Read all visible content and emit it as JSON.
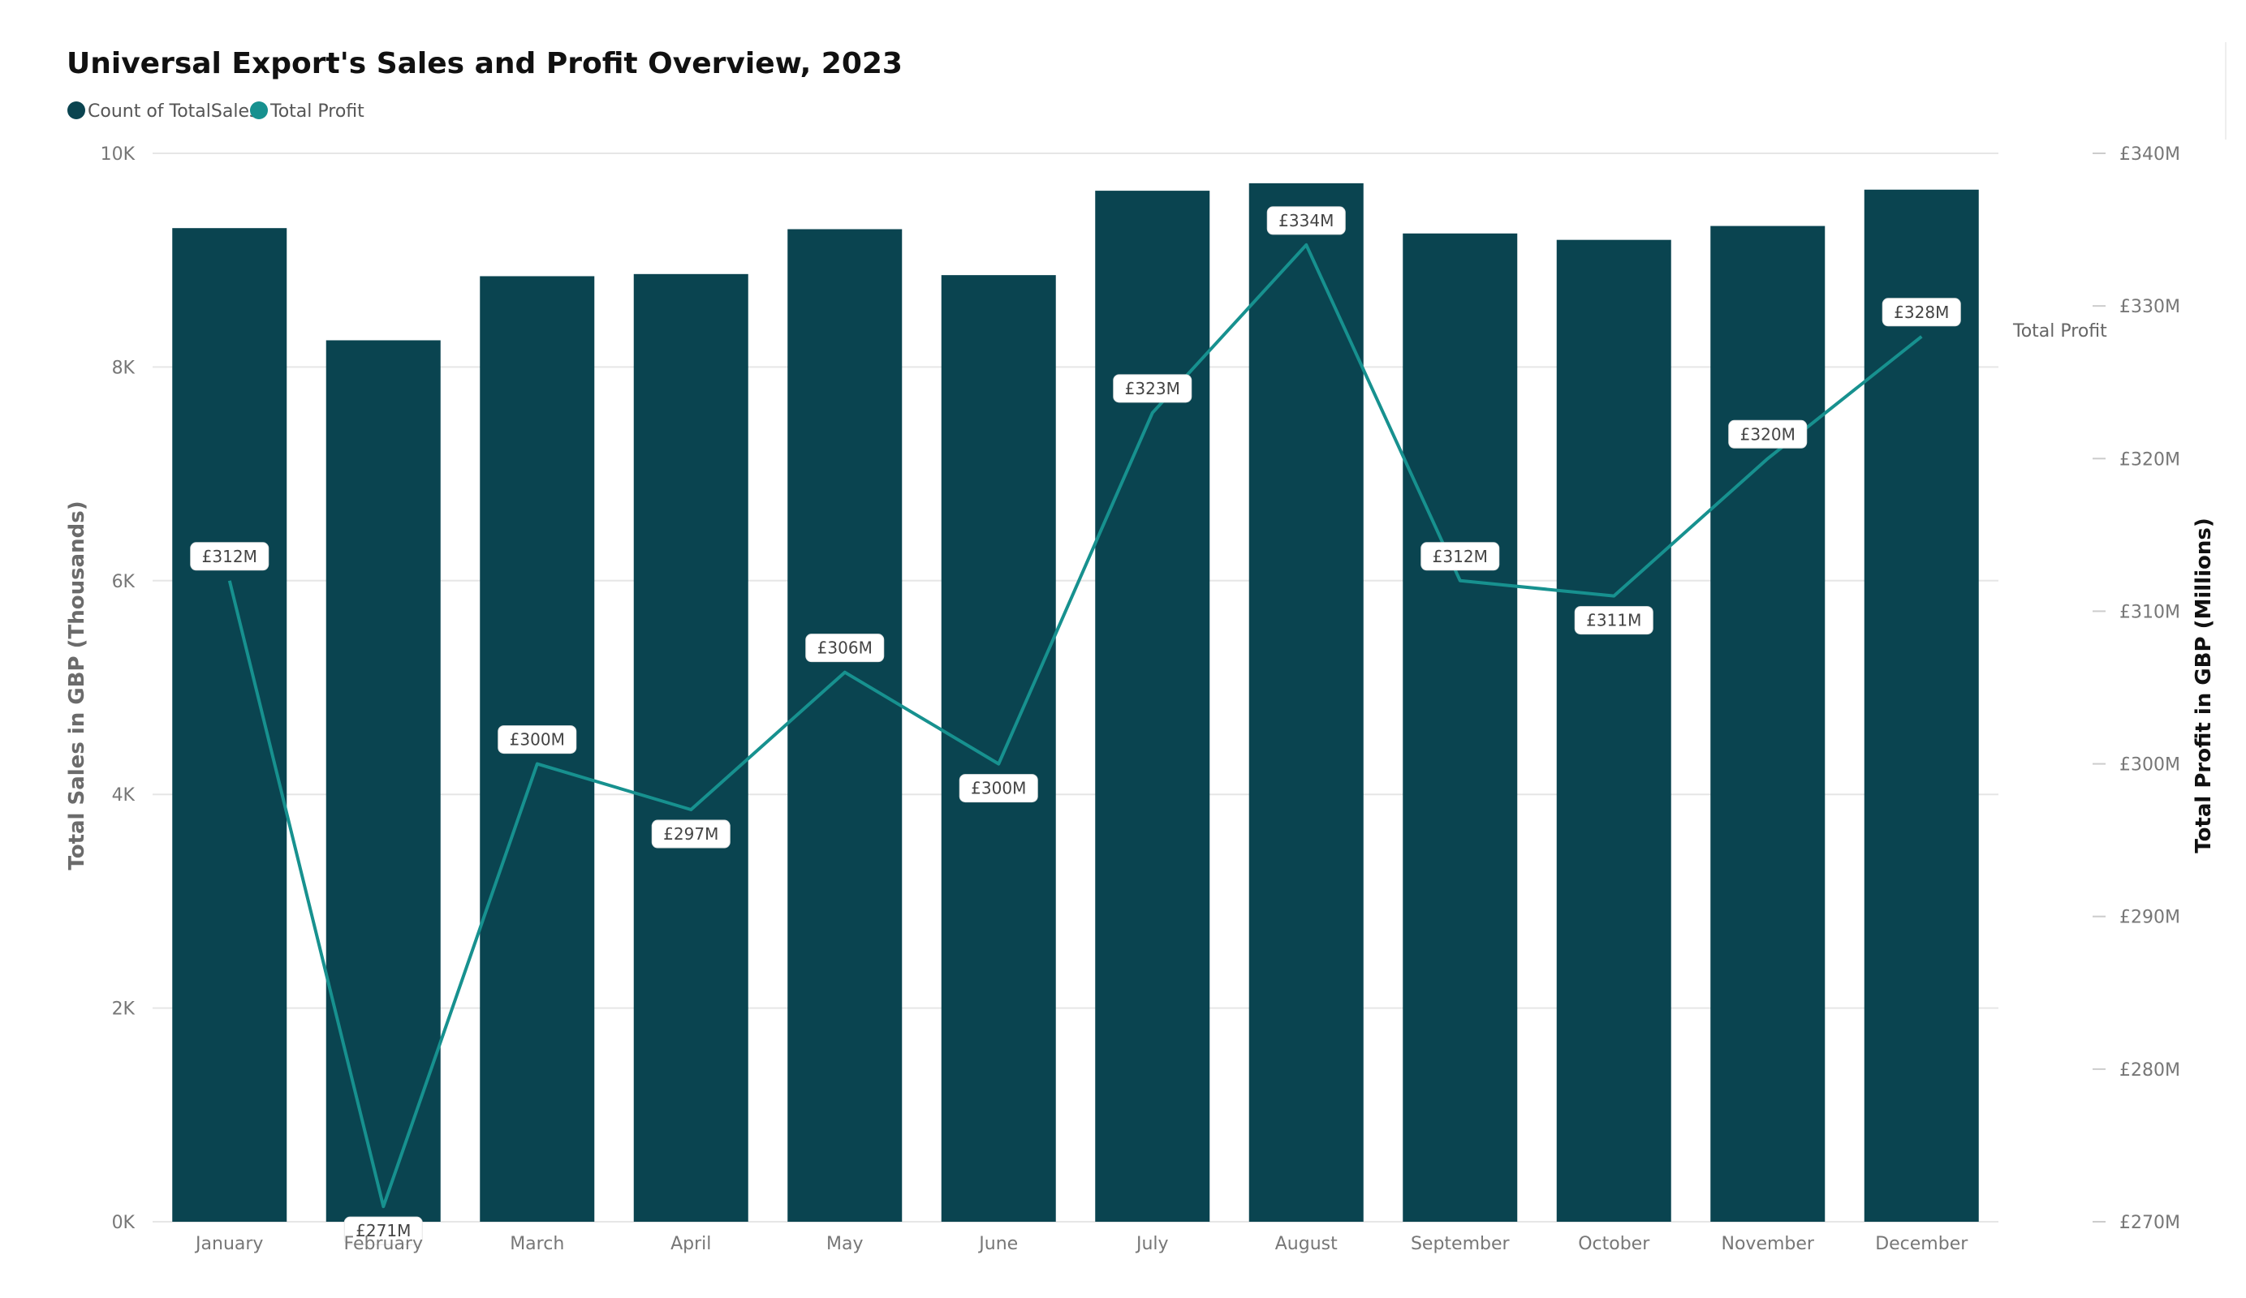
{
  "title": "Universal Export's Sales and Profit Overview, 2023",
  "legend": [
    {
      "label": "Count of TotalSales",
      "color": "#0a4450"
    },
    {
      "label": "Total Profit",
      "color": "#17918f"
    }
  ],
  "colors": {
    "bar": "#0a4450",
    "line": "#17918f",
    "grid": "#e6e6e6"
  },
  "chart_data": {
    "type": "bar",
    "title": "Universal Export's Sales and Profit Overview, 2023",
    "ylabel": "Total Sales in GBP (Thousands)",
    "y2label": "Total Profit in GBP (Millions)",
    "categories": [
      "January",
      "February",
      "March",
      "April",
      "May",
      "June",
      "July",
      "August",
      "September",
      "October",
      "November",
      "December"
    ],
    "ylim": [
      0,
      10000
    ],
    "y_ticks": [
      0,
      2000,
      4000,
      6000,
      8000,
      10000
    ],
    "y_tick_labels": [
      "0K",
      "2K",
      "4K",
      "6K",
      "8K",
      "10K"
    ],
    "y2lim": [
      270,
      340
    ],
    "y2_ticks": [
      270,
      280,
      290,
      300,
      310,
      320,
      330,
      340
    ],
    "y2_tick_labels": [
      "£270M",
      "£280M",
      "£290M",
      "£300M",
      "£310M",
      "£320M",
      "£330M",
      "£340M"
    ],
    "grid": true,
    "legend_position": "top-left",
    "series": [
      {
        "name": "Count of TotalSales",
        "type": "bar",
        "axis": "left",
        "values": [
          9300,
          8250,
          8850,
          8870,
          9290,
          8860,
          9650,
          9720,
          9250,
          9190,
          9320,
          9660
        ]
      },
      {
        "name": "Total Profit",
        "type": "line",
        "axis": "right",
        "series_label": "Total Profit",
        "values": [
          312,
          271,
          300,
          297,
          306,
          300,
          323,
          334,
          312,
          311,
          320,
          328
        ],
        "data_labels": [
          "£312M",
          "£271M",
          "£300M",
          "£297M",
          "£306M",
          "£300M",
          "£323M",
          "£334M",
          "£312M",
          "£311M",
          "£320M",
          "£328M"
        ]
      }
    ]
  }
}
